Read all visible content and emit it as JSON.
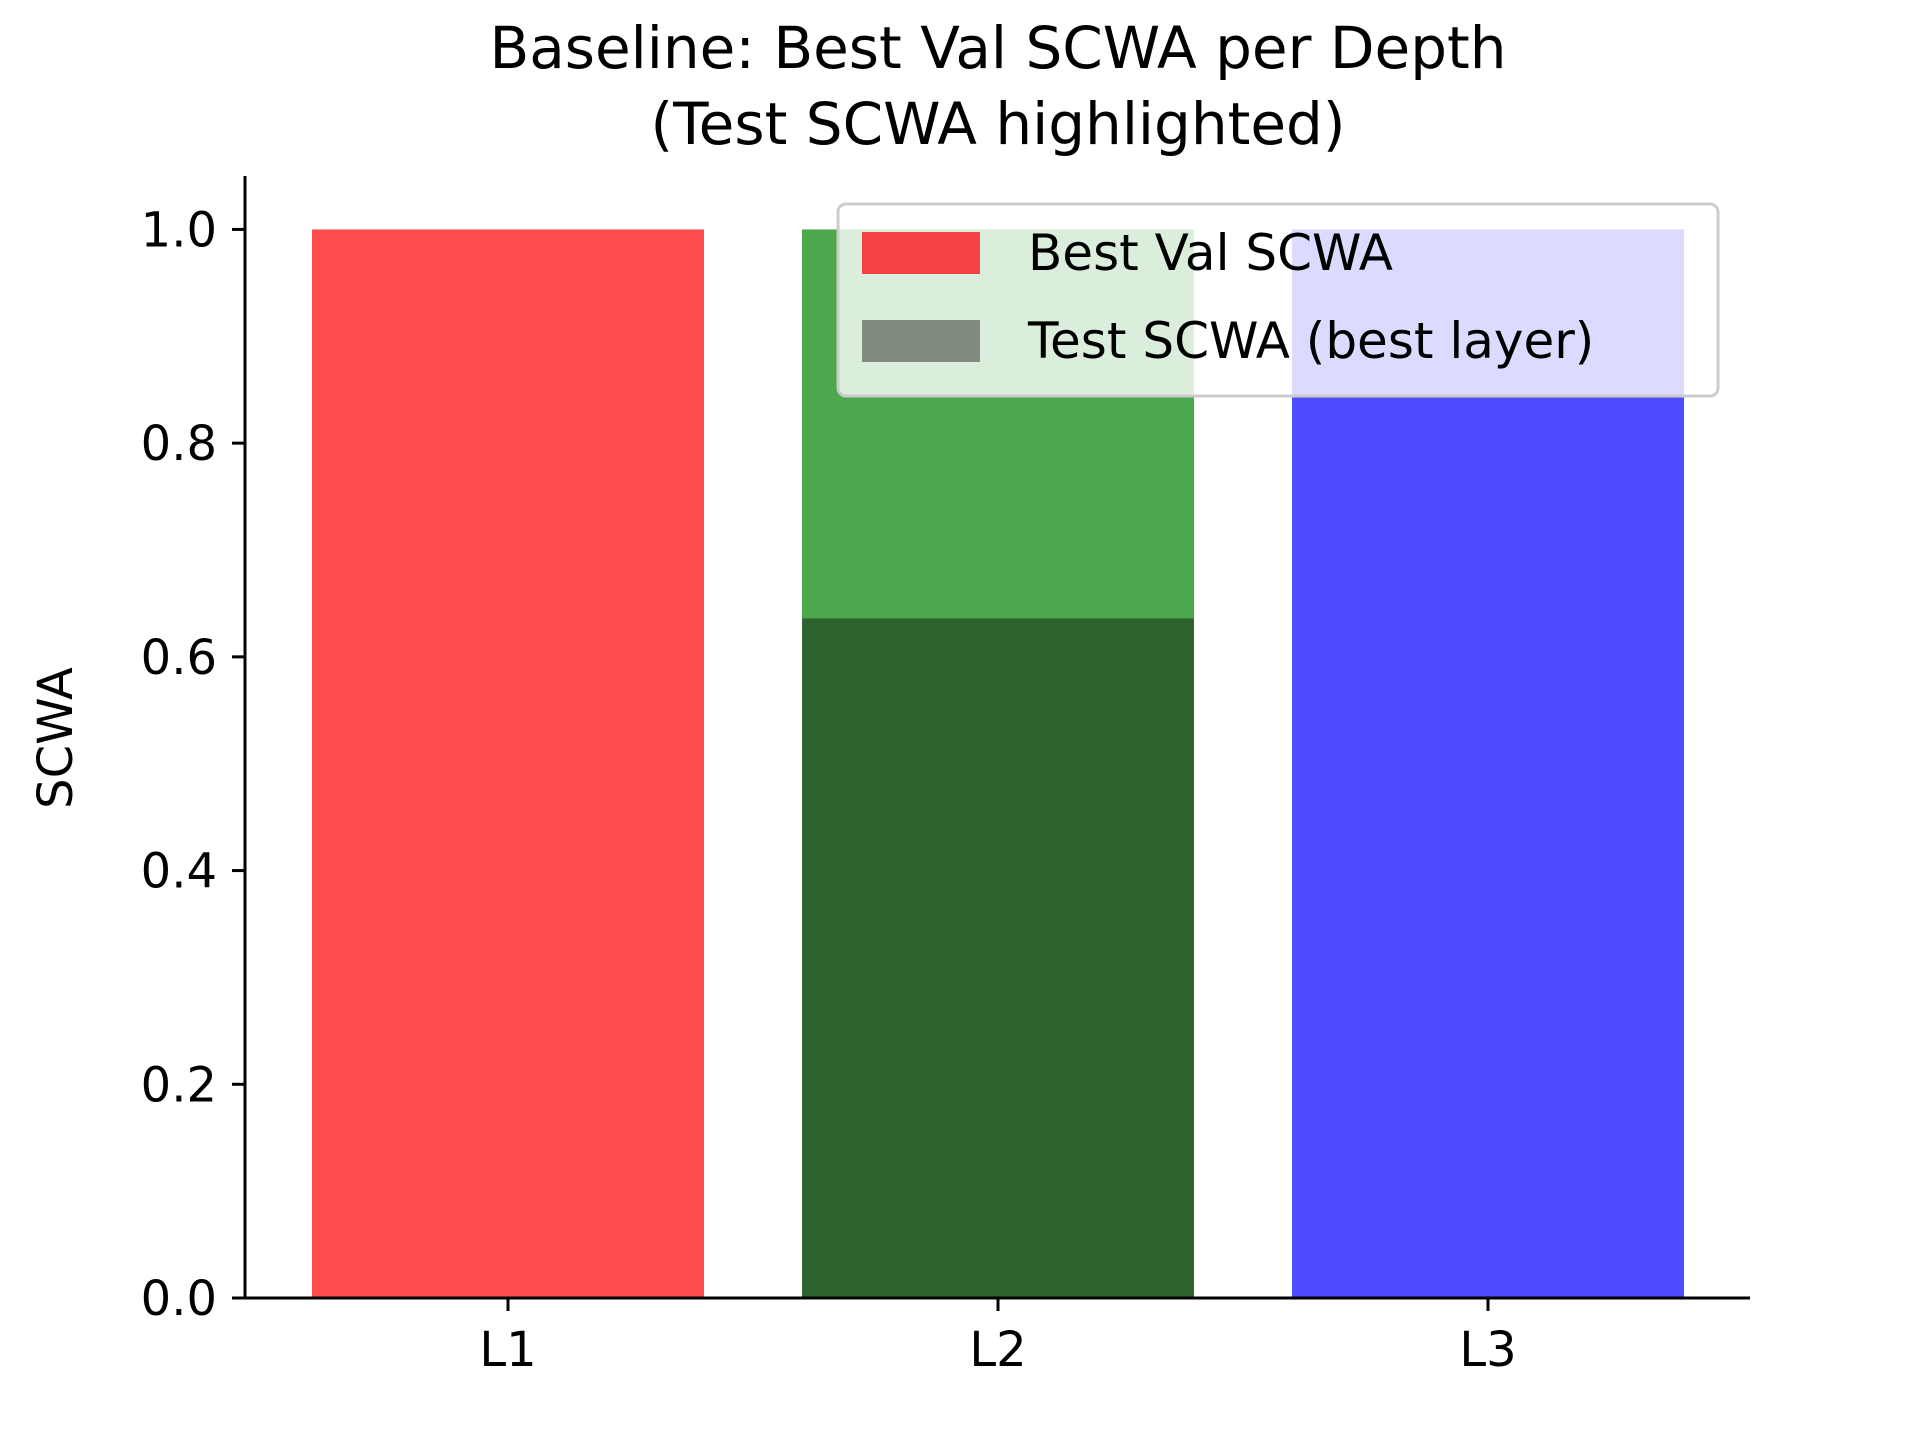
{
  "chart_data": {
    "type": "bar",
    "title_lines": [
      "Baseline: Best Val SCWA per Depth",
      "(Test SCWA highlighted)"
    ],
    "xlabel": "",
    "ylabel": "SCWA",
    "categories": [
      "L1",
      "L2",
      "L3"
    ],
    "ylim": [
      0,
      1.05
    ],
    "yticks": [
      "0.0",
      "0.2",
      "0.4",
      "0.6",
      "0.8",
      "1.0"
    ],
    "grid": false,
    "legend_position": "top-right",
    "series": [
      {
        "name": "Best Val SCWA",
        "values": [
          1.0,
          1.0,
          1.0
        ],
        "bar_colors": [
          "#ff4d4d",
          "#4da84d",
          "#4d4dff"
        ]
      },
      {
        "name": "Test SCWA (best layer)",
        "category": "L2",
        "value": 0.636,
        "color": "#2e632e"
      }
    ],
    "legend_swatch_colors": [
      "#f44141",
      "#828b80"
    ]
  }
}
